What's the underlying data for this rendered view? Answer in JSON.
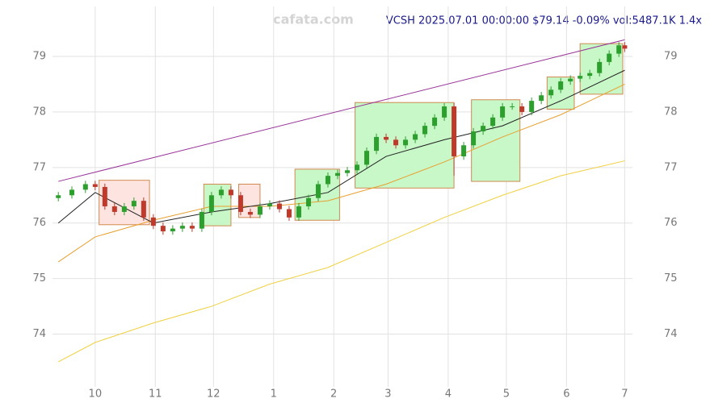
{
  "chart_data": {
    "type": "candlestick",
    "watermark": "cafata.com",
    "title": "VCSH 2025.07.01 00:00:00 $79.14 -0.09% vol:5487.1K 1.4x",
    "xlim": [
      -22,
      277
    ],
    "xticks": [
      {
        "value": 0,
        "label": "10"
      },
      {
        "value": 31,
        "label": "11"
      },
      {
        "value": 61,
        "label": "12"
      },
      {
        "value": 92,
        "label": "1"
      },
      {
        "value": 123,
        "label": "2"
      },
      {
        "value": 151,
        "label": "3"
      },
      {
        "value": 182,
        "label": "4"
      },
      {
        "value": 212,
        "label": "5"
      },
      {
        "value": 243,
        "label": "6"
      },
      {
        "value": 273,
        "label": "7"
      }
    ],
    "ylim": [
      73.05,
      79.9
    ],
    "yticks": [
      74,
      75,
      76,
      77,
      78,
      79
    ],
    "grid": true,
    "up_color": "#2ca02c",
    "down_color": "#c0392b",
    "candles": {
      "x": [
        -19,
        -12,
        -5,
        0,
        5,
        10,
        15,
        20,
        25,
        30,
        35,
        40,
        45,
        50,
        55,
        60,
        65,
        70,
        75,
        80,
        85,
        90,
        95,
        100,
        105,
        110,
        115,
        120,
        125,
        130,
        135,
        140,
        145,
        150,
        155,
        160,
        165,
        170,
        175,
        180,
        185,
        190,
        195,
        200,
        205,
        210,
        215,
        220,
        225,
        230,
        235,
        240,
        245,
        250,
        255,
        260,
        265,
        270,
        273
      ],
      "open": [
        76.45,
        76.5,
        76.6,
        76.7,
        76.65,
        76.3,
        76.2,
        76.3,
        76.4,
        76.1,
        75.95,
        75.85,
        75.9,
        75.95,
        75.9,
        76.2,
        76.5,
        76.6,
        76.5,
        76.2,
        76.15,
        76.3,
        76.35,
        76.25,
        76.1,
        76.3,
        76.45,
        76.7,
        76.85,
        76.9,
        76.95,
        77.05,
        77.3,
        77.55,
        77.5,
        77.4,
        77.5,
        77.6,
        77.75,
        77.9,
        78.1,
        77.2,
        77.4,
        77.65,
        77.75,
        77.9,
        78.1,
        78.1,
        78.0,
        78.2,
        78.3,
        78.4,
        78.55,
        78.6,
        78.65,
        78.7,
        78.9,
        79.05,
        79.2
      ],
      "high": [
        76.56,
        76.66,
        76.76,
        76.76,
        76.71,
        76.36,
        76.36,
        76.46,
        76.46,
        76.16,
        76.01,
        75.96,
        76.01,
        76.01,
        76.26,
        76.56,
        76.66,
        76.66,
        76.56,
        76.26,
        76.36,
        76.41,
        76.41,
        76.31,
        76.36,
        76.51,
        76.76,
        76.91,
        76.96,
        77.01,
        77.11,
        77.36,
        77.61,
        77.61,
        77.56,
        77.56,
        77.66,
        77.81,
        77.96,
        78.16,
        78.16,
        77.46,
        77.71,
        77.81,
        77.96,
        78.16,
        78.16,
        78.16,
        78.26,
        78.36,
        78.46,
        78.61,
        78.66,
        78.71,
        78.76,
        78.96,
        79.11,
        79.26,
        79.26
      ],
      "low": [
        76.39,
        76.44,
        76.54,
        76.59,
        76.24,
        76.14,
        76.14,
        76.24,
        76.04,
        75.89,
        75.79,
        75.79,
        75.84,
        75.84,
        75.84,
        76.14,
        76.44,
        76.44,
        76.14,
        76.09,
        76.09,
        76.24,
        76.19,
        76.04,
        76.04,
        76.24,
        76.39,
        76.64,
        76.79,
        76.84,
        76.89,
        76.99,
        77.24,
        77.44,
        77.34,
        77.34,
        77.44,
        77.54,
        77.69,
        77.84,
        76.85,
        77.14,
        77.34,
        77.59,
        77.69,
        77.84,
        78.04,
        77.94,
        77.94,
        78.14,
        78.24,
        78.34,
        78.49,
        78.54,
        78.59,
        78.64,
        78.84,
        78.99,
        79.08
      ],
      "close": [
        76.5,
        76.6,
        76.7,
        76.65,
        76.3,
        76.2,
        76.3,
        76.4,
        76.1,
        75.95,
        75.85,
        75.9,
        75.95,
        75.9,
        76.2,
        76.5,
        76.6,
        76.5,
        76.2,
        76.15,
        76.3,
        76.35,
        76.25,
        76.1,
        76.3,
        76.45,
        76.7,
        76.85,
        76.9,
        76.95,
        77.05,
        77.3,
        77.55,
        77.5,
        77.4,
        77.5,
        77.6,
        77.75,
        77.9,
        78.1,
        77.2,
        77.4,
        77.65,
        77.75,
        77.9,
        78.1,
        78.1,
        78.0,
        78.2,
        78.3,
        78.4,
        78.55,
        78.6,
        78.65,
        78.7,
        78.9,
        79.05,
        79.2,
        79.14
      ]
    },
    "lines": [
      {
        "color": "#f0d040",
        "x": [
          -19,
          0,
          30,
          60,
          90,
          120,
          150,
          180,
          210,
          240,
          273
        ],
        "values": [
          73.5,
          73.85,
          74.2,
          74.5,
          74.9,
          75.2,
          75.65,
          76.1,
          76.5,
          76.85,
          77.12
        ]
      },
      {
        "color": "#e8a030",
        "x": [
          -19,
          0,
          30,
          60,
          90,
          120,
          150,
          180,
          210,
          240,
          273
        ],
        "values": [
          75.3,
          75.75,
          76.05,
          76.3,
          76.3,
          76.4,
          76.7,
          77.1,
          77.55,
          77.95,
          78.5
        ]
      },
      {
        "color": "#222222",
        "x": [
          -19,
          0,
          30,
          60,
          90,
          120,
          150,
          180,
          210,
          240,
          273
        ],
        "values": [
          76.0,
          76.55,
          76.0,
          76.2,
          76.35,
          76.55,
          77.2,
          77.5,
          77.75,
          78.2,
          78.75
        ]
      },
      {
        "color": "#993399",
        "x": [
          -19,
          273
        ],
        "values": [
          76.75,
          79.3
        ]
      }
    ],
    "boxes": [
      {
        "color": "#fde4e0",
        "x": [
          2,
          28
        ],
        "y": [
          75.97,
          76.77
        ]
      },
      {
        "color": "#c8f7c8",
        "x": [
          56,
          70
        ],
        "y": [
          75.95,
          76.7
        ]
      },
      {
        "color": "#fde4e0",
        "x": [
          74,
          85
        ],
        "y": [
          76.1,
          76.7
        ]
      },
      {
        "color": "#c8f7c8",
        "x": [
          103,
          126
        ],
        "y": [
          76.05,
          76.97
        ]
      },
      {
        "color": "#c8f7c8",
        "x": [
          134,
          185
        ],
        "y": [
          76.63,
          78.17
        ]
      },
      {
        "color": "#c8f7c8",
        "x": [
          194,
          219
        ],
        "y": [
          76.75,
          78.22
        ]
      },
      {
        "color": "#c8f7c8",
        "x": [
          233,
          247
        ],
        "y": [
          78.05,
          78.63
        ]
      },
      {
        "color": "#c8f7c8",
        "x": [
          250,
          272
        ],
        "y": [
          78.32,
          79.23
        ]
      }
    ]
  }
}
